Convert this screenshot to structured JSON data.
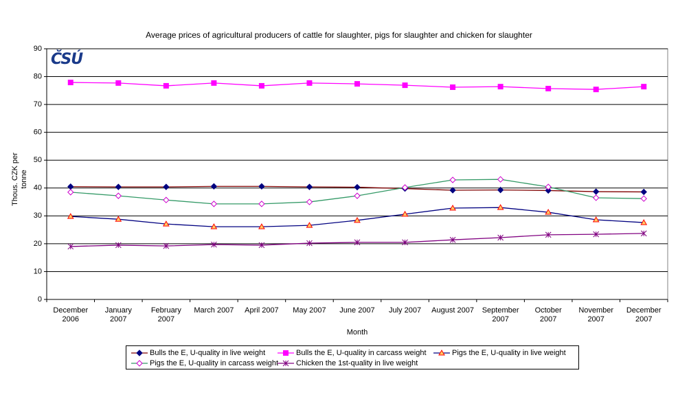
{
  "chart_data": {
    "type": "line",
    "title": "Average prices of agricultural producers of cattle for slaughter, pigs for slaughter and chicken for slaughter",
    "logo": "ČSÚ",
    "xlabel": "Month",
    "ylabel": "Thous. CZK per tonne",
    "categories": [
      "December 2006",
      "January 2007",
      "February 2007",
      "March 2007",
      "April 2007",
      "May 2007",
      "June 2007",
      "July 2007",
      "August 2007",
      "September 2007",
      "October 2007",
      "November 2007",
      "December 2007"
    ],
    "ylim": [
      0,
      90
    ],
    "yticks": [
      0,
      10,
      20,
      30,
      40,
      50,
      60,
      70,
      80,
      90
    ],
    "grid": true,
    "series": [
      {
        "name": "Bulls the E, U-quality in live weight",
        "color": "#800000",
        "marker": "diamond",
        "marker_color": "#000080",
        "values": [
          40.5,
          40.4,
          40.4,
          40.6,
          40.6,
          40.4,
          40.3,
          39.8,
          39.2,
          39.3,
          39.1,
          38.7,
          38.6
        ]
      },
      {
        "name": "Bulls the E, U-quality in carcass weight",
        "color": "#ff00ff",
        "marker": "square",
        "marker_color": "#ff00ff",
        "values": [
          77.9,
          77.7,
          76.7,
          77.7,
          76.7,
          77.7,
          77.4,
          76.9,
          76.2,
          76.4,
          75.7,
          75.4,
          76.4
        ]
      },
      {
        "name": "Pigs the E, U-quality in live weight",
        "color": "#000080",
        "marker": "triangle",
        "marker_color": "#ff9933",
        "values": [
          29.8,
          28.8,
          27.1,
          26.1,
          26.1,
          26.6,
          28.4,
          30.6,
          32.8,
          33.0,
          31.3,
          28.6,
          27.6
        ]
      },
      {
        "name": "Pigs the E, U-quality in carcass weight",
        "color": "#339966",
        "marker": "hollow-diamond",
        "marker_color": "#cc00cc",
        "values": [
          38.5,
          37.2,
          35.7,
          34.3,
          34.3,
          35.0,
          37.2,
          40.2,
          42.9,
          43.1,
          40.4,
          36.5,
          36.2
        ]
      },
      {
        "name": "Chicken the 1st-quality in live weight",
        "color": "#800080",
        "marker": "star",
        "marker_color": "#800080",
        "values": [
          19.0,
          19.5,
          19.2,
          19.7,
          19.5,
          20.2,
          20.5,
          20.5,
          21.4,
          22.2,
          23.2,
          23.4,
          23.7
        ]
      }
    ]
  }
}
